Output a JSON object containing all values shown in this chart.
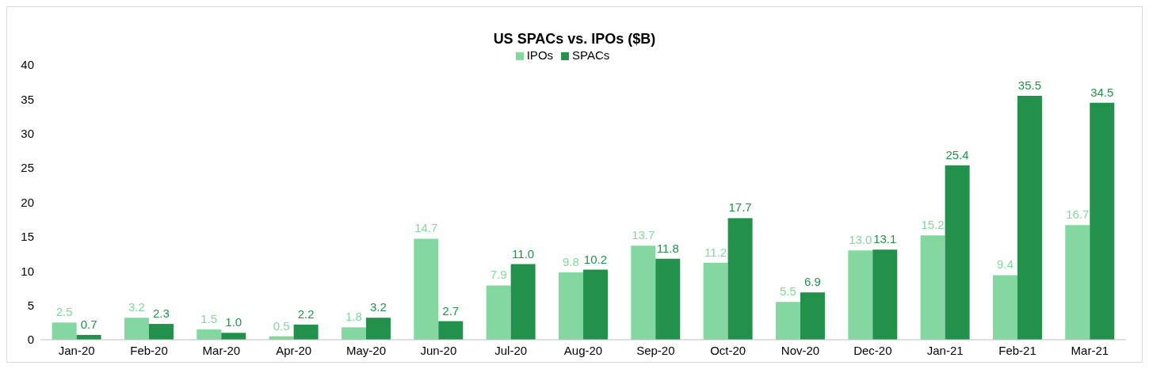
{
  "chart_data": {
    "type": "bar",
    "title": "US SPACs vs. IPOs ($B)",
    "categories": [
      "Jan-20",
      "Feb-20",
      "Mar-20",
      "Apr-20",
      "May-20",
      "Jun-20",
      "Jul-20",
      "Aug-20",
      "Sep-20",
      "Oct-20",
      "Nov-20",
      "Dec-20",
      "Jan-21",
      "Feb-21",
      "Mar-21"
    ],
    "series": [
      {
        "name": "IPOs",
        "color": "#84d7a1",
        "values": [
          2.5,
          3.2,
          1.5,
          0.5,
          1.8,
          14.7,
          7.9,
          9.8,
          13.7,
          11.2,
          5.5,
          13.0,
          15.2,
          9.4,
          16.7
        ],
        "value_labels": [
          "2.5",
          "3.2",
          "1.5",
          "0.5",
          "1.8",
          "14.7",
          "7.9",
          "9.8",
          "13.7",
          "11.2",
          "5.5",
          "13.0",
          "15.2",
          "9.4",
          "16.7"
        ]
      },
      {
        "name": "SPACs",
        "color": "#21914b",
        "values": [
          0.7,
          2.3,
          1.0,
          2.2,
          3.2,
          2.7,
          11.0,
          10.2,
          11.8,
          17.7,
          6.9,
          13.1,
          25.4,
          35.5,
          34.5
        ],
        "value_labels": [
          "0.7",
          "2.3",
          "1.0",
          "2.2",
          "3.2",
          "2.7",
          "11.0",
          "10.2",
          "11.8",
          "17.7",
          "6.9",
          "13.1",
          "25.4",
          "35.5",
          "34.5"
        ]
      }
    ],
    "ylim": [
      0,
      40
    ],
    "yticks": [
      0,
      5,
      10,
      15,
      20,
      25,
      30,
      35,
      40
    ],
    "grid": false,
    "legend": "top"
  }
}
